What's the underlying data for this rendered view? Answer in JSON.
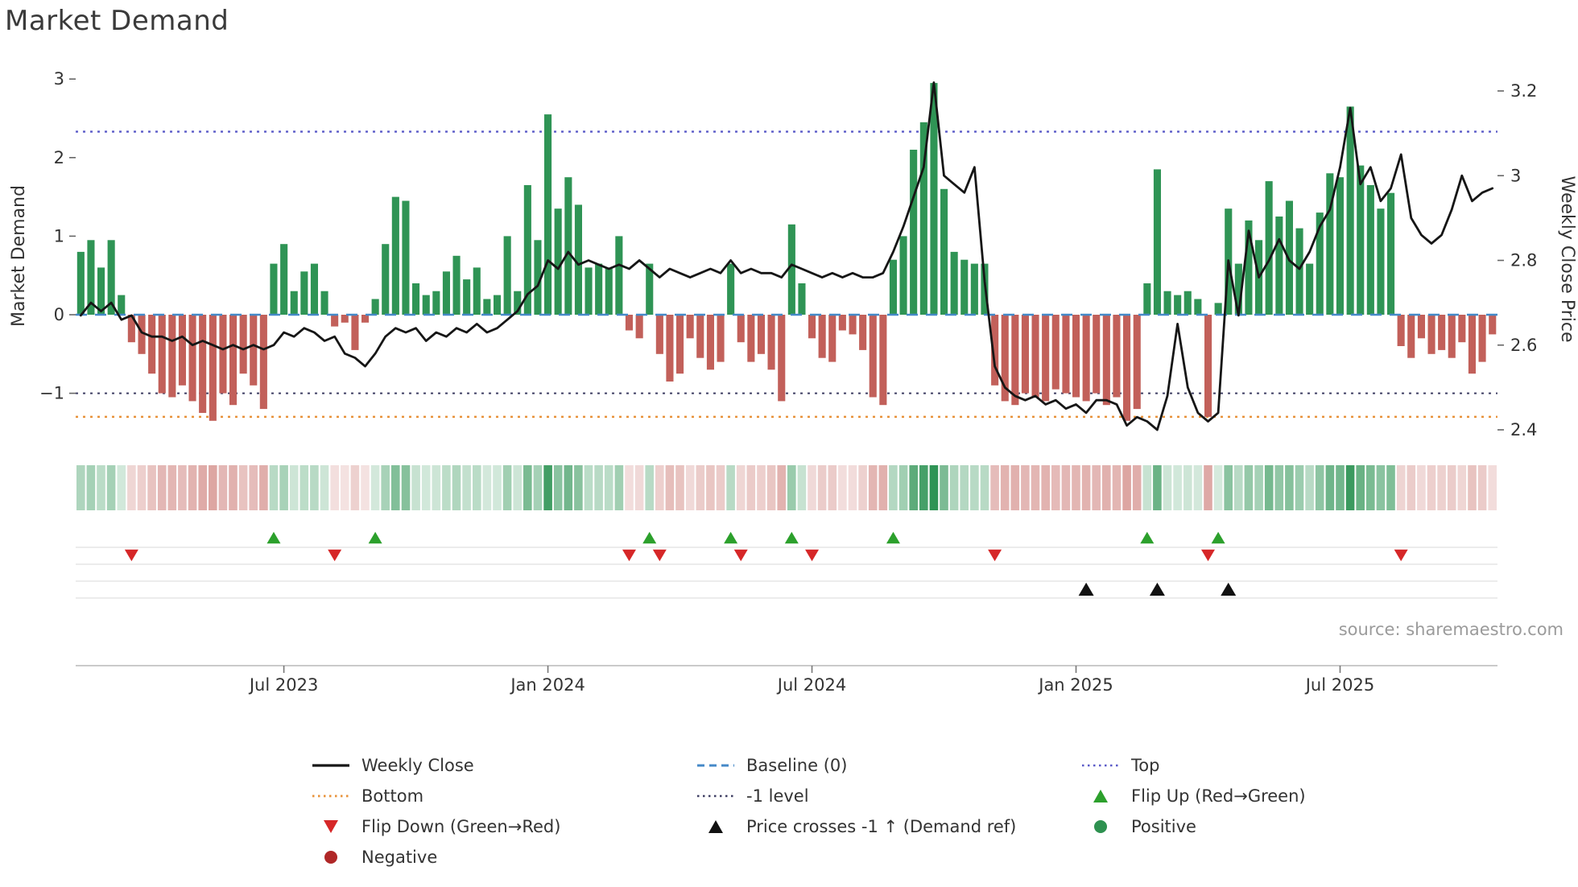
{
  "title": "Market Demand",
  "source": "source: sharemaestro.com",
  "legend": {
    "items": [
      {
        "label": "Weekly Close"
      },
      {
        "label": "Baseline (0)"
      },
      {
        "label": "Top"
      },
      {
        "label": "Bottom"
      },
      {
        "label": "-1 level"
      },
      {
        "label": "Flip Up (Red→Green)"
      },
      {
        "label": "Flip Down (Green→Red)"
      },
      {
        "label": "Price crosses -1 ↑ (Demand ref)"
      },
      {
        "label": "Positive"
      },
      {
        "label": "Negative"
      }
    ]
  },
  "chart_data": {
    "type": "bar+line",
    "title": "Market Demand",
    "ylabel_left": "Market Demand",
    "ylabel_right": "Weekly Close Price",
    "x_unit": "week",
    "ylim_left": [
      -1.6,
      3.1
    ],
    "ylim_right": [
      2.4,
      3.2
    ],
    "grid": false,
    "legend_position": "bottom",
    "x_ticks": [
      {
        "index": 20,
        "label": "Jul 2023"
      },
      {
        "index": 46,
        "label": "Jan 2024"
      },
      {
        "index": 72,
        "label": "Jul 2024"
      },
      {
        "index": 98,
        "label": "Jan 2025"
      },
      {
        "index": 124,
        "label": "Jul 2025"
      }
    ],
    "left_ticks": [
      {
        "v": 3,
        "label": "3"
      },
      {
        "v": 2,
        "label": "2"
      },
      {
        "v": 1,
        "label": "1"
      },
      {
        "v": 0,
        "label": "0"
      },
      {
        "v": -1,
        "label": "−1"
      }
    ],
    "right_ticks": [
      {
        "v": 3.2,
        "label": "3.2"
      },
      {
        "v": 3.0,
        "label": "3"
      },
      {
        "v": 2.8,
        "label": "2.8"
      },
      {
        "v": 2.6,
        "label": "2.6"
      },
      {
        "v": 2.4,
        "label": "2.4"
      }
    ],
    "levels": {
      "top": 2.33,
      "baseline": 0,
      "minus1": -1,
      "bottom": -1.3
    },
    "series": {
      "demand": [
        0.8,
        0.95,
        0.6,
        0.95,
        0.25,
        -0.35,
        -0.5,
        -0.75,
        -1.0,
        -1.05,
        -0.9,
        -1.1,
        -1.25,
        -1.35,
        -1.0,
        -1.15,
        -0.75,
        -0.9,
        -1.2,
        0.65,
        0.9,
        0.3,
        0.55,
        0.65,
        0.3,
        -0.15,
        -0.1,
        -0.45,
        -0.1,
        0.2,
        0.9,
        1.5,
        1.45,
        0.4,
        0.25,
        0.3,
        0.55,
        0.75,
        0.45,
        0.6,
        0.2,
        0.25,
        1.0,
        0.3,
        1.65,
        0.95,
        2.55,
        1.35,
        1.75,
        1.4,
        0.6,
        0.65,
        0.6,
        1.0,
        -0.2,
        -0.3,
        0.65,
        -0.5,
        -0.85,
        -0.75,
        -0.3,
        -0.55,
        -0.7,
        -0.6,
        0.65,
        -0.35,
        -0.6,
        -0.5,
        -0.7,
        -1.1,
        1.15,
        0.4,
        -0.3,
        -0.55,
        -0.6,
        -0.2,
        -0.25,
        -0.45,
        -1.05,
        -1.15,
        0.7,
        1.0,
        2.1,
        2.45,
        2.95,
        1.6,
        0.8,
        0.7,
        0.65,
        0.65,
        -0.9,
        -1.1,
        -1.15,
        -1.0,
        -1.05,
        -1.1,
        -0.95,
        -1.0,
        -1.05,
        -1.1,
        -1.0,
        -1.15,
        -1.05,
        -1.35,
        -1.2,
        0.4,
        1.85,
        0.3,
        0.25,
        0.3,
        0.2,
        -1.3,
        0.15,
        1.35,
        0.65,
        1.2,
        0.95,
        1.7,
        1.25,
        1.45,
        1.1,
        0.65,
        1.3,
        1.8,
        1.75,
        2.65,
        1.9,
        1.65,
        1.35,
        1.55,
        -0.4,
        -0.55,
        -0.3,
        -0.5,
        -0.45,
        -0.55,
        -0.35,
        -0.75,
        -0.6,
        -0.25
      ],
      "price": [
        2.67,
        2.7,
        2.68,
        2.7,
        2.66,
        2.67,
        2.63,
        2.62,
        2.62,
        2.61,
        2.62,
        2.6,
        2.61,
        2.6,
        2.59,
        2.6,
        2.59,
        2.6,
        2.59,
        2.6,
        2.63,
        2.62,
        2.64,
        2.63,
        2.61,
        2.62,
        2.58,
        2.57,
        2.55,
        2.58,
        2.62,
        2.64,
        2.63,
        2.64,
        2.61,
        2.63,
        2.62,
        2.64,
        2.63,
        2.65,
        2.63,
        2.64,
        2.66,
        2.68,
        2.72,
        2.74,
        2.8,
        2.78,
        2.82,
        2.79,
        2.8,
        2.79,
        2.78,
        2.79,
        2.78,
        2.8,
        2.78,
        2.76,
        2.78,
        2.77,
        2.76,
        2.77,
        2.78,
        2.77,
        2.8,
        2.77,
        2.78,
        2.77,
        2.77,
        2.76,
        2.79,
        2.78,
        2.77,
        2.76,
        2.77,
        2.76,
        2.77,
        2.76,
        2.76,
        2.77,
        2.82,
        2.88,
        2.95,
        3.02,
        3.22,
        3.0,
        2.98,
        2.96,
        3.02,
        2.75,
        2.55,
        2.5,
        2.48,
        2.47,
        2.48,
        2.46,
        2.47,
        2.45,
        2.46,
        2.44,
        2.47,
        2.47,
        2.46,
        2.41,
        2.43,
        2.42,
        2.4,
        2.48,
        2.65,
        2.5,
        2.44,
        2.42,
        2.44,
        2.8,
        2.67,
        2.87,
        2.76,
        2.8,
        2.85,
        2.8,
        2.78,
        2.82,
        2.88,
        2.92,
        3.02,
        3.16,
        2.98,
        3.02,
        2.94,
        2.97,
        3.05,
        2.9,
        2.86,
        2.84,
        2.86,
        2.92,
        3.0,
        2.94,
        2.96,
        2.97
      ]
    },
    "markers": {
      "flip_up": [
        19,
        29,
        56,
        64,
        70,
        80,
        105,
        112
      ],
      "flip_down": [
        5,
        25,
        54,
        57,
        65,
        72,
        90,
        111,
        130
      ],
      "price_cross": [
        99,
        106,
        113
      ]
    },
    "colors": {
      "positive": "#2f9455",
      "negative": "#c2605a",
      "price": "#161616",
      "top": "#5b5bc8",
      "baseline": "#4589c8",
      "minus1": "#3f3f63",
      "bottom": "#e8923a",
      "flip_up": "#2ca02c",
      "flip_down": "#d62728",
      "cross": "#111111",
      "positive_dot": "#2e9150",
      "negative_dot": "#b02727"
    }
  }
}
